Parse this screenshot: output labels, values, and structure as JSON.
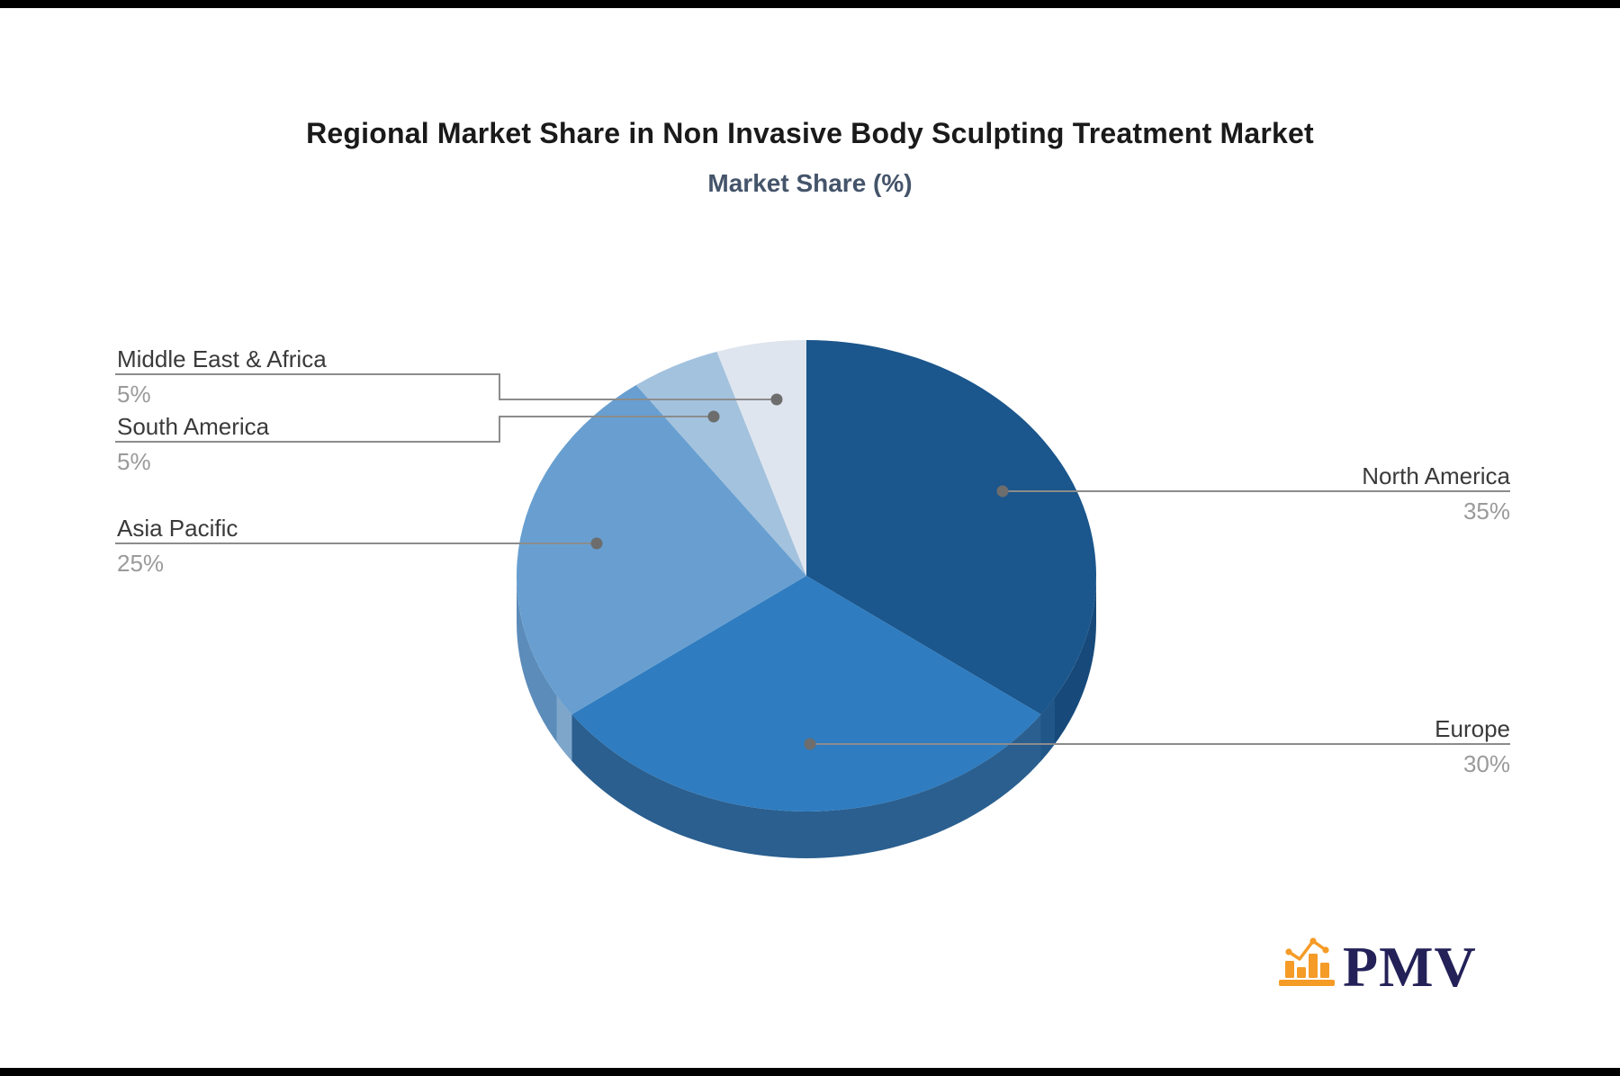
{
  "chart_data": {
    "type": "pie",
    "title": "Regional Market Share in Non Invasive Body Sculpting Treatment Market",
    "subtitle": "Market Share (%)",
    "unit": "%",
    "categories": [
      "North America",
      "Europe",
      "Asia Pacific",
      "South America",
      "Middle East & Africa"
    ],
    "values": [
      35,
      30,
      25,
      5,
      5
    ],
    "value_labels": [
      "35%",
      "30%",
      "25%",
      "5%",
      "5%"
    ],
    "colors": [
      "#1b568c",
      "#2f7cc0",
      "#689fd0",
      "#a3c2de",
      "#dfe5ee"
    ],
    "depth_colors": [
      "#174a7b",
      "#2a5f8f",
      "#5c8cba",
      "#8fb3d3",
      "#c9d5e2"
    ],
    "effect": "3d-depth",
    "start_angle": "12-oclock",
    "direction": "clockwise",
    "legend": "none",
    "label_line_color": "#8c8c8c",
    "label_dot_color": "#6d6d6d",
    "label_name_color": "#3a3a3a",
    "label_value_color": "#9a9a9a",
    "title_color": "#1a1a1a",
    "subtitle_color": "#44546a"
  },
  "logo": {
    "text": "PMV",
    "icon": "bar-chart-icon",
    "icon_color": "#f59b27",
    "text_color": "#232158"
  }
}
